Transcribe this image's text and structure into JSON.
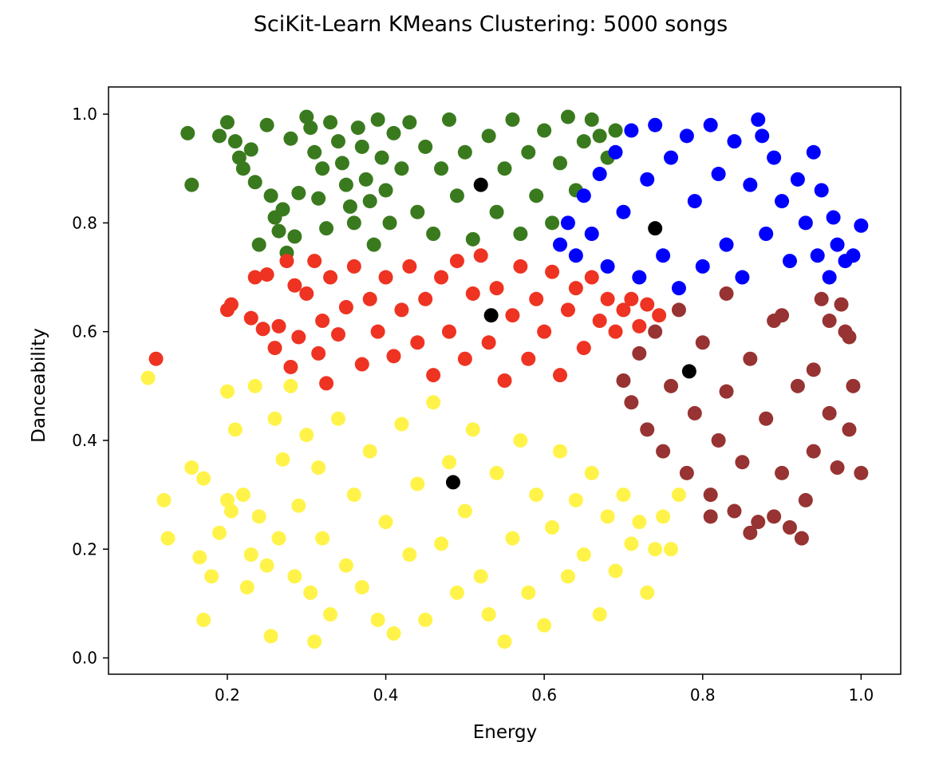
{
  "chart_data": {
    "type": "scatter",
    "title": "SciKit-Learn KMeans Clustering: 5000 songs",
    "xlabel": "Energy",
    "ylabel": "Danceability",
    "xlim": [
      0.05,
      1.05
    ],
    "ylim": [
      -0.03,
      1.05
    ],
    "xticks": [
      0.2,
      0.4,
      0.6,
      0.8,
      1.0
    ],
    "xtick_labels": [
      "0.2",
      "0.4",
      "0.6",
      "0.8",
      "1.0"
    ],
    "yticks": [
      0.0,
      0.2,
      0.4,
      0.6,
      0.8,
      1.0
    ],
    "ytick_labels": [
      "0.0",
      "0.2",
      "0.4",
      "0.6",
      "0.8",
      "1.0"
    ],
    "grid": false,
    "legend": "none",
    "series": [
      {
        "color": "#3a7a1e",
        "centroid": [
          0.52,
          0.87
        ],
        "points": [
          [
            0.15,
            0.965
          ],
          [
            0.155,
            0.87
          ],
          [
            0.19,
            0.96
          ],
          [
            0.2,
            0.985
          ],
          [
            0.21,
            0.95
          ],
          [
            0.215,
            0.92
          ],
          [
            0.22,
            0.9
          ],
          [
            0.23,
            0.935
          ],
          [
            0.235,
            0.875
          ],
          [
            0.24,
            0.76
          ],
          [
            0.25,
            0.98
          ],
          [
            0.255,
            0.85
          ],
          [
            0.26,
            0.81
          ],
          [
            0.265,
            0.785
          ],
          [
            0.27,
            0.825
          ],
          [
            0.275,
            0.745
          ],
          [
            0.28,
            0.955
          ],
          [
            0.285,
            0.775
          ],
          [
            0.29,
            0.855
          ],
          [
            0.3,
            0.995
          ],
          [
            0.305,
            0.975
          ],
          [
            0.31,
            0.93
          ],
          [
            0.315,
            0.845
          ],
          [
            0.32,
            0.9
          ],
          [
            0.325,
            0.79
          ],
          [
            0.33,
            0.985
          ],
          [
            0.34,
            0.95
          ],
          [
            0.345,
            0.91
          ],
          [
            0.35,
            0.87
          ],
          [
            0.355,
            0.83
          ],
          [
            0.36,
            0.8
          ],
          [
            0.365,
            0.975
          ],
          [
            0.37,
            0.94
          ],
          [
            0.375,
            0.88
          ],
          [
            0.38,
            0.84
          ],
          [
            0.385,
            0.76
          ],
          [
            0.39,
            0.99
          ],
          [
            0.395,
            0.92
          ],
          [
            0.4,
            0.86
          ],
          [
            0.405,
            0.8
          ],
          [
            0.41,
            0.965
          ],
          [
            0.42,
            0.9
          ],
          [
            0.43,
            0.985
          ],
          [
            0.44,
            0.82
          ],
          [
            0.45,
            0.94
          ],
          [
            0.46,
            0.78
          ],
          [
            0.47,
            0.9
          ],
          [
            0.48,
            0.99
          ],
          [
            0.49,
            0.85
          ],
          [
            0.5,
            0.93
          ],
          [
            0.51,
            0.77
          ],
          [
            0.53,
            0.96
          ],
          [
            0.54,
            0.82
          ],
          [
            0.55,
            0.9
          ],
          [
            0.56,
            0.99
          ],
          [
            0.57,
            0.78
          ],
          [
            0.58,
            0.93
          ],
          [
            0.59,
            0.85
          ],
          [
            0.6,
            0.97
          ],
          [
            0.61,
            0.8
          ],
          [
            0.62,
            0.91
          ],
          [
            0.63,
            0.995
          ],
          [
            0.64,
            0.86
          ],
          [
            0.65,
            0.95
          ],
          [
            0.66,
            0.99
          ],
          [
            0.67,
            0.96
          ],
          [
            0.68,
            0.92
          ],
          [
            0.69,
            0.97
          ]
        ]
      },
      {
        "color": "#0000ff",
        "centroid": [
          0.74,
          0.79
        ],
        "points": [
          [
            0.62,
            0.76
          ],
          [
            0.63,
            0.8
          ],
          [
            0.64,
            0.74
          ],
          [
            0.65,
            0.85
          ],
          [
            0.66,
            0.78
          ],
          [
            0.67,
            0.89
          ],
          [
            0.68,
            0.72
          ],
          [
            0.69,
            0.93
          ],
          [
            0.7,
            0.82
          ],
          [
            0.71,
            0.97
          ],
          [
            0.72,
            0.7
          ],
          [
            0.73,
            0.88
          ],
          [
            0.74,
            0.98
          ],
          [
            0.75,
            0.74
          ],
          [
            0.76,
            0.92
          ],
          [
            0.77,
            0.68
          ],
          [
            0.78,
            0.96
          ],
          [
            0.79,
            0.84
          ],
          [
            0.8,
            0.72
          ],
          [
            0.81,
            0.98
          ],
          [
            0.82,
            0.89
          ],
          [
            0.83,
            0.76
          ],
          [
            0.84,
            0.95
          ],
          [
            0.85,
            0.7
          ],
          [
            0.86,
            0.87
          ],
          [
            0.87,
            0.99
          ],
          [
            0.875,
            0.96
          ],
          [
            0.88,
            0.78
          ],
          [
            0.89,
            0.92
          ],
          [
            0.9,
            0.84
          ],
          [
            0.91,
            0.73
          ],
          [
            0.92,
            0.88
          ],
          [
            0.93,
            0.8
          ],
          [
            0.94,
            0.93
          ],
          [
            0.945,
            0.74
          ],
          [
            0.95,
            0.86
          ],
          [
            0.96,
            0.7
          ],
          [
            0.965,
            0.81
          ],
          [
            0.97,
            0.76
          ],
          [
            0.98,
            0.73
          ],
          [
            0.99,
            0.74
          ],
          [
            1.0,
            0.795
          ]
        ]
      },
      {
        "color": "#ee3322",
        "centroid": [
          0.533,
          0.63
        ],
        "points": [
          [
            0.11,
            0.55
          ],
          [
            0.2,
            0.64
          ],
          [
            0.205,
            0.65
          ],
          [
            0.23,
            0.625
          ],
          [
            0.235,
            0.7
          ],
          [
            0.245,
            0.605
          ],
          [
            0.25,
            0.705
          ],
          [
            0.26,
            0.57
          ],
          [
            0.265,
            0.61
          ],
          [
            0.275,
            0.73
          ],
          [
            0.28,
            0.535
          ],
          [
            0.285,
            0.685
          ],
          [
            0.29,
            0.59
          ],
          [
            0.3,
            0.67
          ],
          [
            0.31,
            0.73
          ],
          [
            0.315,
            0.56
          ],
          [
            0.32,
            0.62
          ],
          [
            0.325,
            0.505
          ],
          [
            0.33,
            0.7
          ],
          [
            0.34,
            0.595
          ],
          [
            0.35,
            0.645
          ],
          [
            0.36,
            0.72
          ],
          [
            0.37,
            0.54
          ],
          [
            0.38,
            0.66
          ],
          [
            0.39,
            0.6
          ],
          [
            0.4,
            0.7
          ],
          [
            0.41,
            0.555
          ],
          [
            0.42,
            0.64
          ],
          [
            0.43,
            0.72
          ],
          [
            0.44,
            0.58
          ],
          [
            0.45,
            0.66
          ],
          [
            0.46,
            0.52
          ],
          [
            0.47,
            0.7
          ],
          [
            0.48,
            0.6
          ],
          [
            0.49,
            0.73
          ],
          [
            0.5,
            0.55
          ],
          [
            0.51,
            0.67
          ],
          [
            0.52,
            0.74
          ],
          [
            0.53,
            0.58
          ],
          [
            0.54,
            0.68
          ],
          [
            0.55,
            0.51
          ],
          [
            0.56,
            0.63
          ],
          [
            0.57,
            0.72
          ],
          [
            0.58,
            0.55
          ],
          [
            0.59,
            0.66
          ],
          [
            0.6,
            0.6
          ],
          [
            0.61,
            0.71
          ],
          [
            0.62,
            0.52
          ],
          [
            0.63,
            0.64
          ],
          [
            0.64,
            0.68
          ],
          [
            0.65,
            0.57
          ],
          [
            0.66,
            0.7
          ],
          [
            0.67,
            0.62
          ],
          [
            0.68,
            0.66
          ],
          [
            0.69,
            0.6
          ],
          [
            0.7,
            0.64
          ],
          [
            0.71,
            0.66
          ],
          [
            0.72,
            0.61
          ],
          [
            0.73,
            0.65
          ],
          [
            0.745,
            0.63
          ]
        ]
      },
      {
        "color": "#973332",
        "centroid": [
          0.783,
          0.527
        ],
        "points": [
          [
            0.7,
            0.51
          ],
          [
            0.71,
            0.47
          ],
          [
            0.72,
            0.56
          ],
          [
            0.73,
            0.42
          ],
          [
            0.74,
            0.6
          ],
          [
            0.75,
            0.38
          ],
          [
            0.76,
            0.5
          ],
          [
            0.77,
            0.64
          ],
          [
            0.78,
            0.34
          ],
          [
            0.79,
            0.45
          ],
          [
            0.8,
            0.58
          ],
          [
            0.81,
            0.3
          ],
          [
            0.82,
            0.4
          ],
          [
            0.83,
            0.67
          ],
          [
            0.84,
            0.27
          ],
          [
            0.85,
            0.36
          ],
          [
            0.86,
            0.55
          ],
          [
            0.87,
            0.25
          ],
          [
            0.88,
            0.44
          ],
          [
            0.89,
            0.62
          ],
          [
            0.9,
            0.34
          ],
          [
            0.91,
            0.24
          ],
          [
            0.92,
            0.5
          ],
          [
            0.93,
            0.29
          ],
          [
            0.94,
            0.38
          ],
          [
            0.95,
            0.66
          ],
          [
            0.96,
            0.45
          ],
          [
            0.97,
            0.35
          ],
          [
            0.98,
            0.6
          ],
          [
            0.985,
            0.42
          ],
          [
            0.99,
            0.5
          ],
          [
            1.0,
            0.34
          ],
          [
            0.89,
            0.26
          ],
          [
            0.925,
            0.22
          ],
          [
            0.81,
            0.26
          ],
          [
            0.86,
            0.23
          ],
          [
            0.96,
            0.62
          ],
          [
            0.975,
            0.65
          ],
          [
            0.985,
            0.59
          ],
          [
            0.9,
            0.63
          ],
          [
            0.94,
            0.53
          ],
          [
            0.83,
            0.49
          ]
        ]
      },
      {
        "color": "#fff34a",
        "centroid": [
          0.485,
          0.323
        ],
        "points": [
          [
            0.1,
            0.515
          ],
          [
            0.12,
            0.29
          ],
          [
            0.125,
            0.22
          ],
          [
            0.155,
            0.35
          ],
          [
            0.165,
            0.185
          ],
          [
            0.17,
            0.33
          ],
          [
            0.17,
            0.07
          ],
          [
            0.18,
            0.15
          ],
          [
            0.19,
            0.23
          ],
          [
            0.2,
            0.49
          ],
          [
            0.2,
            0.29
          ],
          [
            0.205,
            0.27
          ],
          [
            0.21,
            0.42
          ],
          [
            0.22,
            0.3
          ],
          [
            0.225,
            0.13
          ],
          [
            0.23,
            0.19
          ],
          [
            0.235,
            0.5
          ],
          [
            0.24,
            0.26
          ],
          [
            0.25,
            0.17
          ],
          [
            0.255,
            0.04
          ],
          [
            0.26,
            0.44
          ],
          [
            0.265,
            0.22
          ],
          [
            0.27,
            0.365
          ],
          [
            0.28,
            0.5
          ],
          [
            0.285,
            0.15
          ],
          [
            0.29,
            0.28
          ],
          [
            0.3,
            0.41
          ],
          [
            0.305,
            0.12
          ],
          [
            0.31,
            0.03
          ],
          [
            0.315,
            0.35
          ],
          [
            0.32,
            0.22
          ],
          [
            0.33,
            0.08
          ],
          [
            0.34,
            0.44
          ],
          [
            0.35,
            0.17
          ],
          [
            0.36,
            0.3
          ],
          [
            0.37,
            0.13
          ],
          [
            0.38,
            0.38
          ],
          [
            0.39,
            0.07
          ],
          [
            0.4,
            0.25
          ],
          [
            0.41,
            0.045
          ],
          [
            0.42,
            0.43
          ],
          [
            0.43,
            0.19
          ],
          [
            0.44,
            0.32
          ],
          [
            0.45,
            0.07
          ],
          [
            0.46,
            0.47
          ],
          [
            0.47,
            0.21
          ],
          [
            0.48,
            0.36
          ],
          [
            0.49,
            0.12
          ],
          [
            0.5,
            0.27
          ],
          [
            0.51,
            0.42
          ],
          [
            0.52,
            0.15
          ],
          [
            0.53,
            0.08
          ],
          [
            0.54,
            0.34
          ],
          [
            0.55,
            0.03
          ],
          [
            0.56,
            0.22
          ],
          [
            0.57,
            0.4
          ],
          [
            0.58,
            0.12
          ],
          [
            0.59,
            0.3
          ],
          [
            0.6,
            0.06
          ],
          [
            0.61,
            0.24
          ],
          [
            0.62,
            0.38
          ],
          [
            0.63,
            0.15
          ],
          [
            0.64,
            0.29
          ],
          [
            0.65,
            0.19
          ],
          [
            0.66,
            0.34
          ],
          [
            0.67,
            0.08
          ],
          [
            0.68,
            0.26
          ],
          [
            0.69,
            0.16
          ],
          [
            0.7,
            0.3
          ],
          [
            0.71,
            0.21
          ],
          [
            0.72,
            0.25
          ],
          [
            0.73,
            0.12
          ],
          [
            0.74,
            0.2
          ],
          [
            0.75,
            0.26
          ],
          [
            0.76,
            0.2
          ],
          [
            0.77,
            0.3
          ]
        ]
      }
    ]
  }
}
